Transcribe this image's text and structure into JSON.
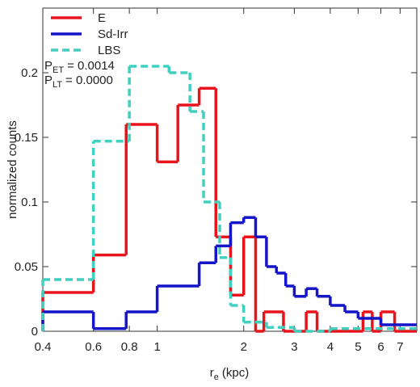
{
  "chart_data": {
    "type": "step-histogram",
    "x_label": {
      "main": "r",
      "sub": "e",
      "rest": "(kpc)"
    },
    "y_label": "normalized counts",
    "xscale": "log",
    "xlim": [
      0.4,
      8
    ],
    "xticks": [
      0.4,
      0.6,
      0.8,
      1,
      2,
      3,
      4,
      5,
      6,
      7
    ],
    "ylim": [
      0,
      0.25
    ],
    "yticks": [
      0,
      0.05,
      0.1,
      0.15,
      0.2
    ],
    "legend": "upper left",
    "annotations": [
      {
        "main": "P",
        "sub": "ET",
        "rest": "= 0.0014"
      },
      {
        "main": "P",
        "sub": "LT",
        "rest": "= 0.0000"
      }
    ],
    "series": [
      {
        "name": "E",
        "color": "#e8141c",
        "dashed": false,
        "bins": [
          0.4,
          0.6,
          0.78,
          1.0,
          1.18,
          1.4,
          1.6,
          1.8,
          2.0,
          2.2,
          2.35,
          2.75,
          3.3,
          3.6,
          5.2,
          5.6,
          6.0,
          6.7,
          7.0,
          8.0
        ],
        "values": [
          0.03,
          0.059,
          0.16,
          0.131,
          0.175,
          0.188,
          0.073,
          0.028,
          0.073,
          0.0,
          0.015,
          0.0,
          0.015,
          0.0,
          0.015,
          0.0,
          0.015,
          0.0,
          0.0
        ]
      },
      {
        "name": "Sd-Irr",
        "color": "#1414c8",
        "dashed": false,
        "bins": [
          0.4,
          0.6,
          0.78,
          1.0,
          1.4,
          1.6,
          1.8,
          2.0,
          2.2,
          2.4,
          2.6,
          2.8,
          3.0,
          3.3,
          3.6,
          4.0,
          4.5,
          5.0,
          6.0,
          8.0
        ],
        "values": [
          0.015,
          0.002,
          0.015,
          0.035,
          0.053,
          0.066,
          0.084,
          0.088,
          0.073,
          0.05,
          0.045,
          0.035,
          0.027,
          0.033,
          0.027,
          0.02,
          0.015,
          0.01,
          0.005
        ]
      },
      {
        "name": "LBS",
        "color": "#40d0c0",
        "dashed": true,
        "bins": [
          0.4,
          0.6,
          0.8,
          1.1,
          1.3,
          1.45,
          1.65,
          1.8,
          2.0,
          2.4,
          3.0,
          4.0,
          8.0
        ],
        "values": [
          0.04,
          0.147,
          0.205,
          0.2,
          0.17,
          0.1,
          0.057,
          0.02,
          0.007,
          0.003,
          0.0,
          0.002
        ]
      }
    ]
  }
}
